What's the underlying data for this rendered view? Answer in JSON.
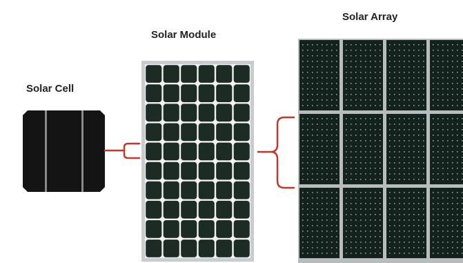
{
  "labels": {
    "cell": "Solar Cell",
    "module": "Solar Module",
    "array": "Solar Array"
  },
  "colors": {
    "cell_fill": "#141414",
    "cell_busbar": "#8a8a8a",
    "module_frame": "#c9ccce",
    "module_cell": "#1d2b25",
    "module_grid": "#f2f2f2",
    "array_gap": "#b9bcbd",
    "array_panel": "#14221d",
    "bracket": "#c0392b"
  },
  "module": {
    "columns": 6,
    "rows": 10
  },
  "array": {
    "columns": 4,
    "rows": 3
  }
}
